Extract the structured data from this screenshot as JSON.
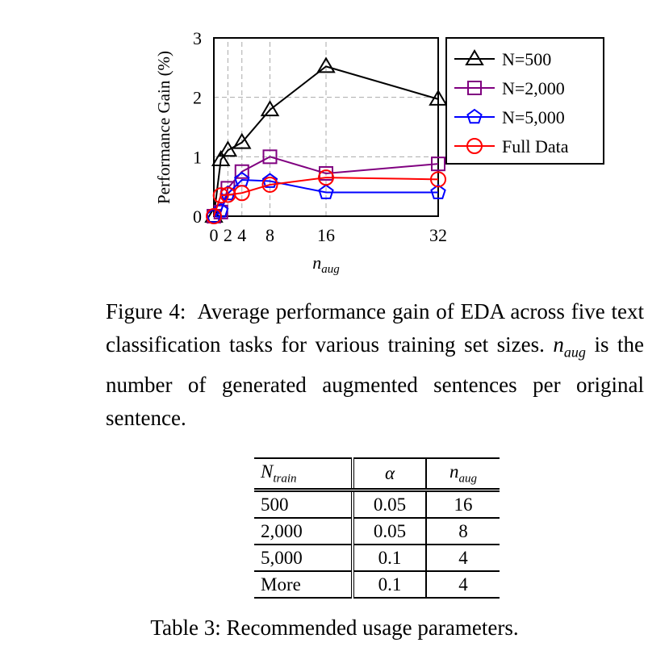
{
  "chart_data": {
    "type": "line",
    "xlabel": "n_aug",
    "ylabel": "Performance Gain (%)",
    "x": [
      0,
      1,
      2,
      4,
      8,
      16,
      32
    ],
    "xticks": [
      "0",
      "2",
      "4",
      "8",
      "16",
      "32"
    ],
    "xtick_values": [
      0,
      2,
      4,
      8,
      16,
      32
    ],
    "yticks": [
      "0",
      "1",
      "2",
      "3"
    ],
    "xlim": [
      0,
      32
    ],
    "ylim": [
      0,
      3
    ],
    "grid": true,
    "legend_position": "outside-right",
    "series": [
      {
        "name": "N=500",
        "color": "#000000",
        "marker": "triangle",
        "values": [
          0,
          0.95,
          1.11,
          1.24,
          1.79,
          2.52,
          1.97
        ]
      },
      {
        "name": "N=2,000",
        "color": "#800080",
        "marker": "square",
        "values": [
          0,
          0.07,
          0.47,
          0.75,
          1.0,
          0.72,
          0.88
        ]
      },
      {
        "name": "N=5,000",
        "color": "#0000ff",
        "marker": "pentagon",
        "values": [
          0,
          0.09,
          0.38,
          0.61,
          0.59,
          0.4,
          0.4
        ]
      },
      {
        "name": "Full Data",
        "color": "#ff0000",
        "marker": "circle",
        "values": [
          0,
          0.35,
          0.36,
          0.39,
          0.53,
          0.65,
          0.62
        ]
      }
    ]
  },
  "figure_caption": {
    "label": "Figure 4:",
    "text1": "Average performance gain of EDA across five text classification tasks for various training set sizes.",
    "var": "n_aug",
    "text2": "is the number of generated augmented sentences per original sentence."
  },
  "table": {
    "headers": [
      "N_train",
      "α",
      "n_aug"
    ],
    "rows": [
      [
        "500",
        "0.05",
        "16"
      ],
      [
        "2,000",
        "0.05",
        "8"
      ],
      [
        "5,000",
        "0.1",
        "4"
      ],
      [
        "More",
        "0.1",
        "4"
      ]
    ],
    "caption": "Table 3: Recommended usage parameters."
  }
}
